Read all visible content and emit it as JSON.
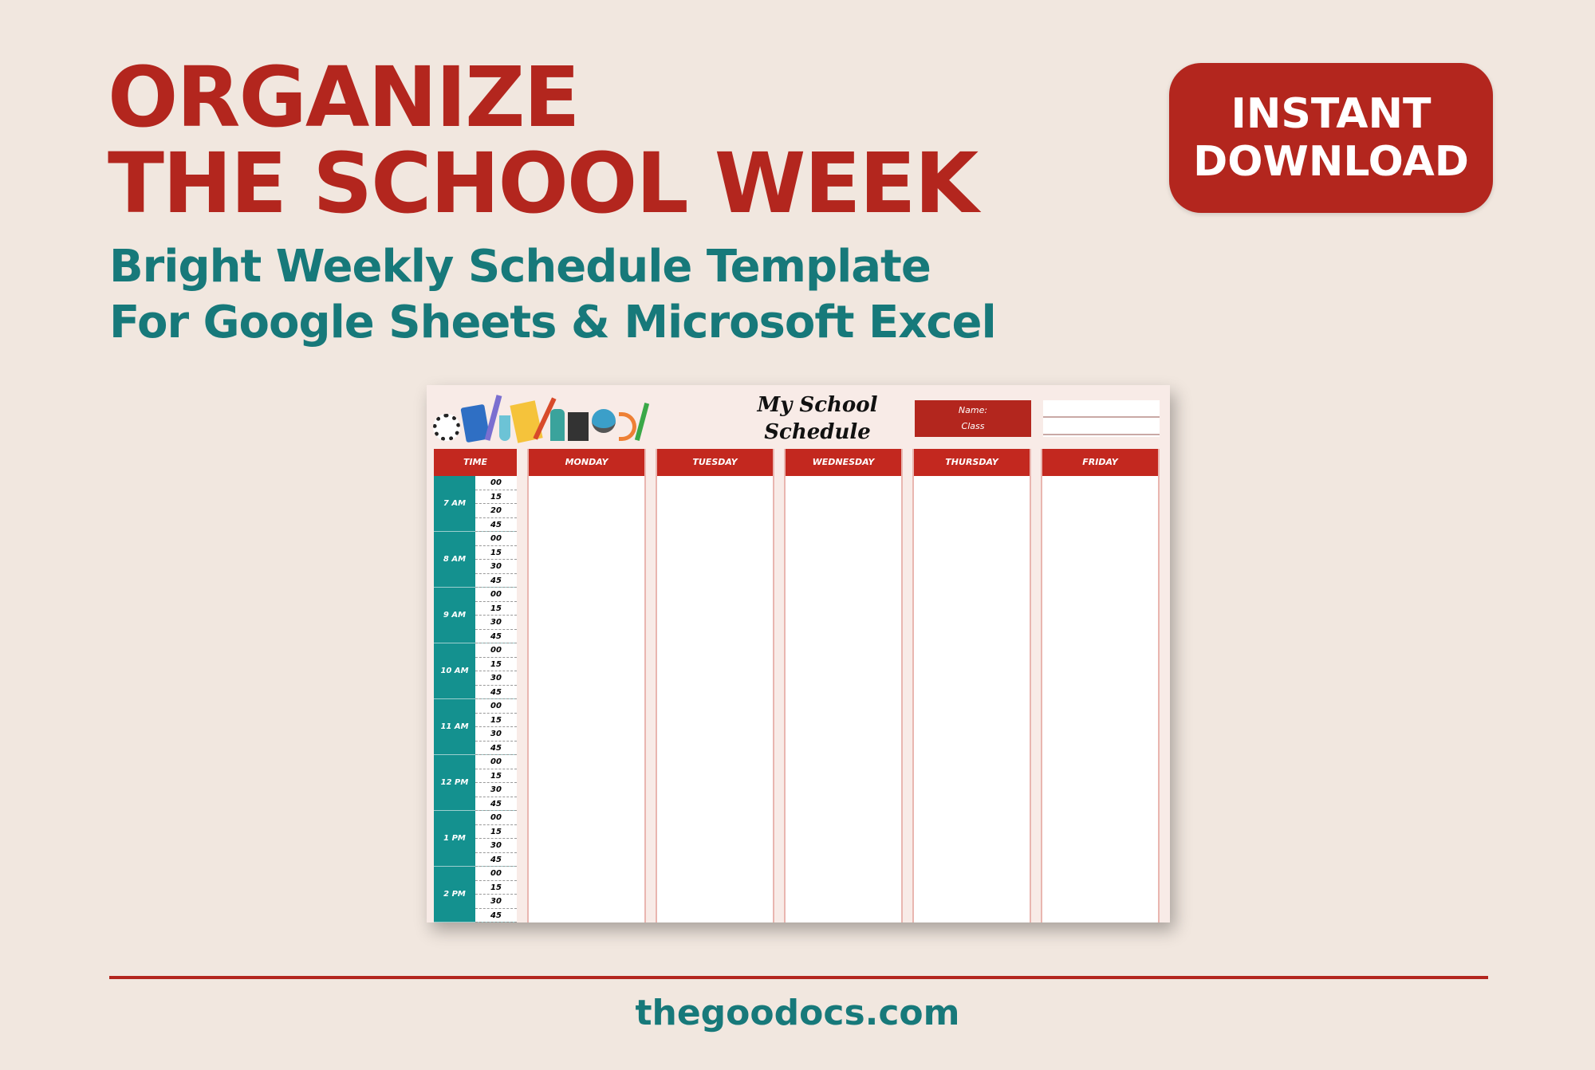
{
  "headline": {
    "line1": "ORGANIZE",
    "line2": "THE SCHOOL WEEK"
  },
  "subheadline": {
    "line1": "Bright Weekly Schedule Template",
    "line2": "For Google Sheets & Microsoft Excel"
  },
  "badge": {
    "line1": "INSTANT",
    "line2": "DOWNLOAD"
  },
  "schedule": {
    "title_line1": "My School",
    "title_line2": "Schedule",
    "name_label": "Name:",
    "class_label": "Class",
    "time_header": "TIME",
    "days": [
      "MONDAY",
      "TUESDAY",
      "WEDNESDAY",
      "THURSDAY",
      "FRIDAY"
    ],
    "hours": [
      {
        "label": "7 AM",
        "minutes": [
          "00",
          "15",
          "20",
          "45"
        ]
      },
      {
        "label": "8 AM",
        "minutes": [
          "00",
          "15",
          "30",
          "45"
        ]
      },
      {
        "label": "9 AM",
        "minutes": [
          "00",
          "15",
          "30",
          "45"
        ]
      },
      {
        "label": "10 AM",
        "minutes": [
          "00",
          "15",
          "30",
          "45"
        ]
      },
      {
        "label": "11 AM",
        "minutes": [
          "00",
          "15",
          "30",
          "45"
        ]
      },
      {
        "label": "12 PM",
        "minutes": [
          "00",
          "15",
          "30",
          "45"
        ]
      },
      {
        "label": "1 PM",
        "minutes": [
          "00",
          "15",
          "30",
          "45"
        ]
      },
      {
        "label": "2 PM",
        "minutes": [
          "00",
          "15",
          "30",
          "45"
        ]
      }
    ],
    "icons": [
      "soccer-ball-icon",
      "calculator-icon",
      "pencil-icon",
      "flask-icon",
      "clipboard-icon",
      "pencil-icon",
      "microscope-icon",
      "book-icon",
      "globe-icon",
      "protractor-icon",
      "ruler-icon"
    ]
  },
  "footer": {
    "url": "thegoodocs.com"
  },
  "colors": {
    "red": "#b3261e",
    "teal": "#17797a",
    "background": "#f1e7df"
  }
}
